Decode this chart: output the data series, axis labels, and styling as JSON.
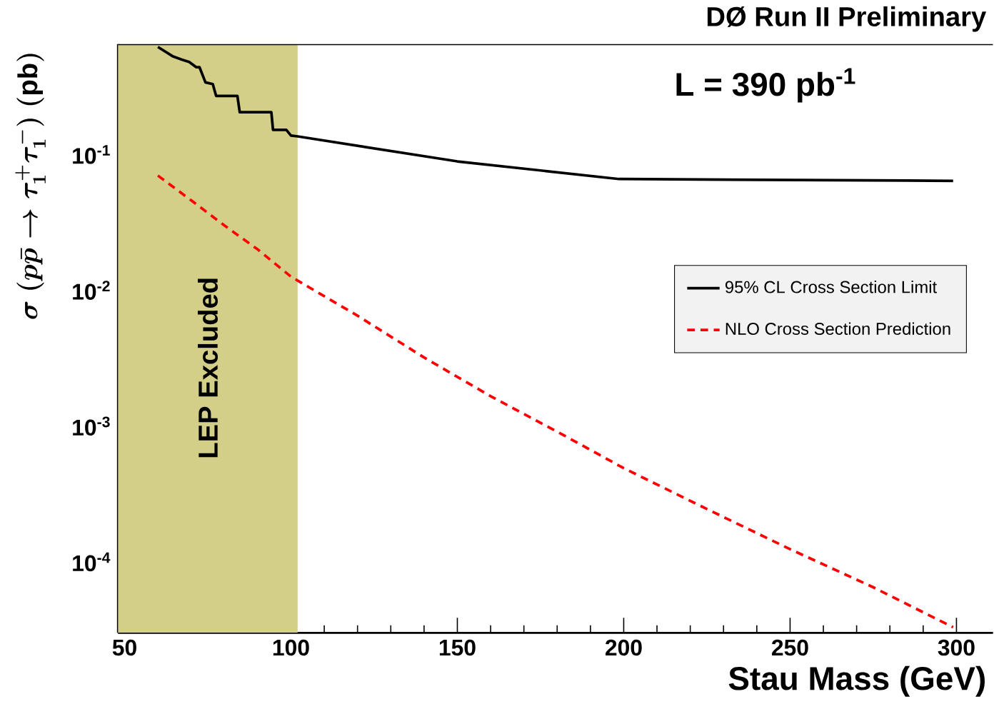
{
  "chart_data": {
    "type": "line",
    "title": "DØ Run II Preliminary",
    "xlabel": "Stau Mass (GeV)",
    "ylabel": "\\sigma\\ (p\\bar{p}\\rightarrow\\tau_1^+\\tau_1^-)\\ \\mathrm{(pb)}",
    "annotations": [
      "L = 390 pb$^{-1}$"
    ],
    "log": "y",
    "xlim": [
      48,
      311
    ],
    "ylim": [
      3e-05,
      0.65
    ],
    "xticks": [
      50,
      100,
      150,
      200,
      250,
      300
    ],
    "yticks": [
      {
        "value": 0.0001,
        "label": "10$^{-4}$"
      },
      {
        "value": 0.001,
        "label": "10$^{-3}$"
      },
      {
        "value": 0.01,
        "label": "10$^{-2}$"
      },
      {
        "value": 0.1,
        "label": "10$^{-1}$"
      }
    ],
    "bands": [
      {
        "axis": "x",
        "from": 48,
        "to": 102,
        "label": "LEP Excluded",
        "color": "#d4cf88"
      }
    ],
    "legend": "right",
    "grid": false,
    "series": [
      {
        "name": "95% CL Cross Section Limit",
        "color": "#000000",
        "line_style": "solid",
        "x": [
          60,
          64.4,
          67.2,
          69.4,
          71.5,
          72.5,
          74.3,
          76.5,
          77.5,
          78.2,
          83.9,
          84.6,
          85.1,
          94.1,
          94.6,
          95.1,
          98.6,
          100,
          102,
          150,
          198.6,
          299
        ],
        "values": [
          0.62,
          0.53,
          0.5,
          0.48,
          0.44,
          0.44,
          0.34,
          0.33,
          0.27,
          0.27,
          0.27,
          0.205,
          0.205,
          0.205,
          0.152,
          0.152,
          0.152,
          0.138,
          0.136,
          0.089,
          0.066,
          0.064
        ]
      },
      {
        "name": "NLO Cross Section Prediction",
        "color": "#ff0000",
        "line_style": "dashed",
        "x": [
          60,
          70,
          80,
          90,
          100,
          120,
          140,
          160,
          180,
          200,
          225,
          250,
          275,
          299
        ],
        "values": [
          0.07,
          0.046,
          0.03,
          0.02,
          0.0126,
          0.0065,
          0.0032,
          0.00166,
          0.00091,
          0.00049,
          0.000245,
          0.000124,
          6.5e-05,
          3.3e-05
        ]
      }
    ]
  }
}
